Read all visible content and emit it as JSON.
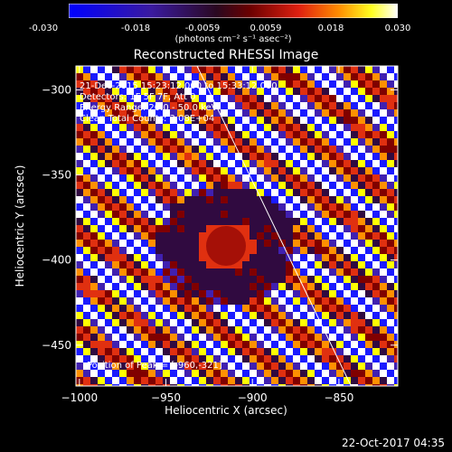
{
  "colorbar": {
    "ticks": [
      "-0.030",
      "-0.018",
      "-0.0059",
      "0.0059",
      "0.018",
      "0.030"
    ],
    "unit_label": "(photons cm⁻² s⁻¹ asec⁻²)"
  },
  "title": "Reconstructed RHESSI Image",
  "annotations": {
    "line1": "21-Dec-2015 15:23:12.000 to 15:33:12.000",
    "line2": "Detectors: 1F 5F 7F, Att 0",
    "line3": "Energy Range: 20.0 - 50.0 keV",
    "line4": "Clean    Total Counts: 3.08E+04",
    "peak": "Position of Peak = [-960,-321]"
  },
  "footer": "22-Oct-2017 04:35",
  "chart_data": {
    "type": "heatmap",
    "title": "Reconstructed RHESSI Image",
    "xlabel": "Heliocentric X (arcsec)",
    "ylabel": "Heliocentric Y (arcsec)",
    "xlim": [
      -1002,
      -816
    ],
    "ylim": [
      -474,
      -286
    ],
    "xticks": [
      -1000,
      -950,
      -900,
      -850
    ],
    "xtick_labels": [
      "−1000",
      "−950",
      "−900",
      "−850"
    ],
    "yticks": [
      -450,
      -400,
      -350,
      -300
    ],
    "ytick_labels": [
      "−450",
      "−400",
      "−350",
      "−300"
    ],
    "colorbar_range": [
      -0.03,
      0.03
    ],
    "colormap": [
      "#1a1aff",
      "#4020b0",
      "#300a40",
      "#800000",
      "#e03010",
      "#ff9000",
      "#ffff00",
      "#ffffff"
    ],
    "limb_line": [
      [
        -932,
        -286
      ],
      [
        -843,
        -474
      ]
    ],
    "peak_position": [
      -960,
      -321
    ]
  }
}
